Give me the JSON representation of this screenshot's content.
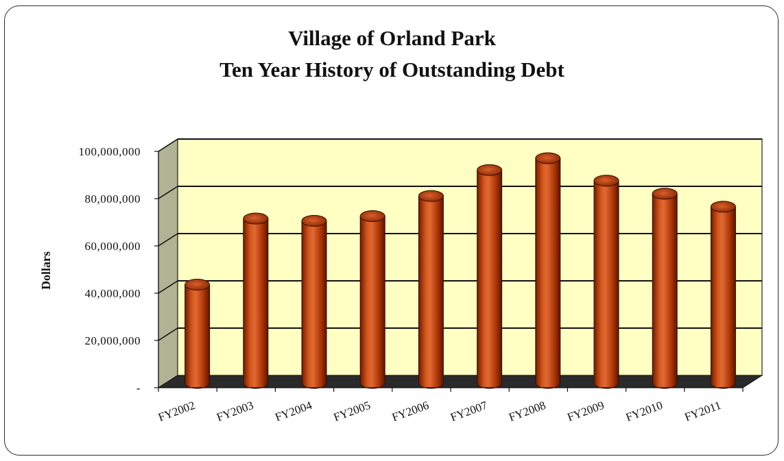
{
  "chart_data": {
    "type": "bar",
    "title": "Village of Orland Park",
    "subtitle": "Ten Year History of Outstanding Debt",
    "xlabel": "",
    "ylabel": "Dollars",
    "categories": [
      "FY2002",
      "FY2003",
      "FY2004",
      "FY2005",
      "FY2006",
      "FY2007",
      "FY2008",
      "FY2009",
      "FY2010",
      "FY2011"
    ],
    "values": [
      41000000,
      69000000,
      68000000,
      70000000,
      78500000,
      89500000,
      94500000,
      85000000,
      79500000,
      74000000
    ],
    "ylim": [
      0,
      100000000
    ],
    "y_ticks": [
      0,
      20000000,
      40000000,
      60000000,
      80000000,
      100000000
    ],
    "y_tick_labels": [
      "-",
      "20,000,000",
      "40,000,000",
      "60,000,000",
      "80,000,000",
      "100,000,000"
    ],
    "grid": true,
    "style": "3d-cylinder",
    "colors": {
      "bar": "#b83a08",
      "bar_dark": "#5a1500",
      "bar_light": "#e06a34",
      "wall": "#ffffc4",
      "side_wall": "#b2b294",
      "floor": "#2a2a2a"
    }
  }
}
